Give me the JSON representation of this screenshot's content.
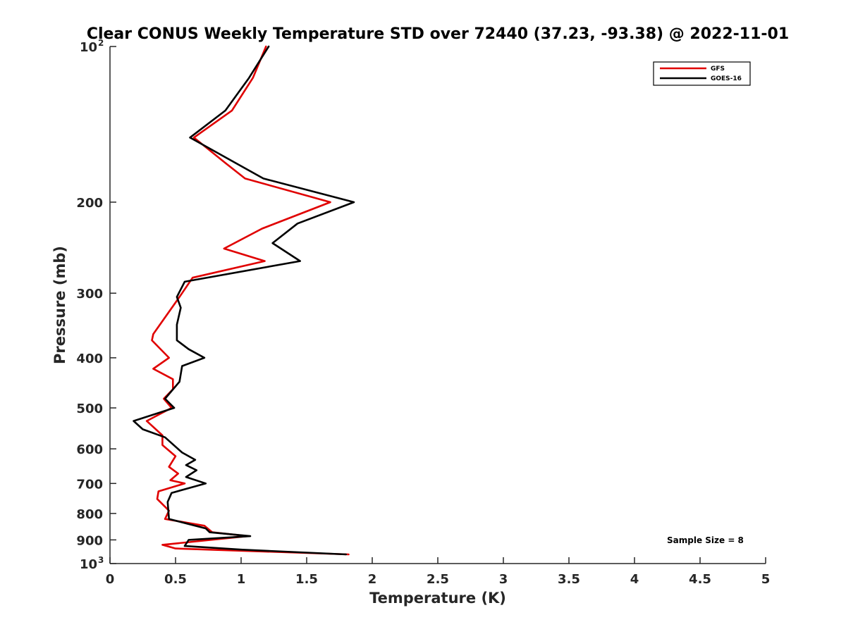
{
  "chart_data": {
    "type": "line",
    "title": "Clear CONUS Weekly Temperature STD over 72440 (37.23, -93.38) @ 2022-11-01",
    "xlabel": "Temperature (K)",
    "ylabel": "Pressure (mb)",
    "xlim": [
      0,
      5
    ],
    "ylim": [
      100,
      1000
    ],
    "y_scale": "log",
    "y_reversed": true,
    "grid": false,
    "legend_position": "top-right",
    "x_ticks": [
      {
        "value": 0,
        "label": "0"
      },
      {
        "value": 0.5,
        "label": "0.5"
      },
      {
        "value": 1,
        "label": "1"
      },
      {
        "value": 1.5,
        "label": "1.5"
      },
      {
        "value": 2,
        "label": "2"
      },
      {
        "value": 2.5,
        "label": "2.5"
      },
      {
        "value": 3,
        "label": "3"
      },
      {
        "value": 3.5,
        "label": "3.5"
      },
      {
        "value": 4,
        "label": "4"
      },
      {
        "value": 4.5,
        "label": "4.5"
      },
      {
        "value": 5,
        "label": "5"
      }
    ],
    "y_ticks": [
      {
        "value": 100,
        "label": "10",
        "sup": "2"
      },
      {
        "value": 200,
        "label": "200"
      },
      {
        "value": 300,
        "label": "300"
      },
      {
        "value": 400,
        "label": "400"
      },
      {
        "value": 500,
        "label": "500"
      },
      {
        "value": 600,
        "label": "600"
      },
      {
        "value": 700,
        "label": "700"
      },
      {
        "value": 800,
        "label": "800"
      },
      {
        "value": 900,
        "label": "900"
      },
      {
        "value": 1000,
        "label": "10",
        "sup": "3"
      }
    ],
    "annotation": "Sample Size = 8",
    "series": [
      {
        "name": "GFS",
        "color": "#e00000",
        "points": [
          [
            1.19,
            100
          ],
          [
            1.09,
            115
          ],
          [
            0.93,
            133
          ],
          [
            0.64,
            150
          ],
          [
            0.88,
            168
          ],
          [
            1.03,
            180
          ],
          [
            1.68,
            200
          ],
          [
            1.16,
            225
          ],
          [
            0.87,
            246
          ],
          [
            1.18,
            260
          ],
          [
            0.63,
            280
          ],
          [
            0.53,
            305
          ],
          [
            0.33,
            360
          ],
          [
            0.32,
            370
          ],
          [
            0.45,
            400
          ],
          [
            0.33,
            420
          ],
          [
            0.48,
            440
          ],
          [
            0.48,
            460
          ],
          [
            0.41,
            480
          ],
          [
            0.47,
            500
          ],
          [
            0.28,
            530
          ],
          [
            0.4,
            565
          ],
          [
            0.4,
            590
          ],
          [
            0.5,
            620
          ],
          [
            0.45,
            650
          ],
          [
            0.52,
            670
          ],
          [
            0.46,
            690
          ],
          [
            0.57,
            700
          ],
          [
            0.37,
            725
          ],
          [
            0.36,
            750
          ],
          [
            0.45,
            790
          ],
          [
            0.42,
            820
          ],
          [
            0.72,
            845
          ],
          [
            0.78,
            870
          ],
          [
            1.05,
            885
          ],
          [
            0.4,
            920
          ],
          [
            0.5,
            935
          ],
          [
            1.82,
            960
          ]
        ]
      },
      {
        "name": "GOES-16",
        "color": "#000000",
        "points": [
          [
            1.21,
            100
          ],
          [
            1.06,
            115
          ],
          [
            0.88,
            133
          ],
          [
            0.61,
            150
          ],
          [
            1.17,
            180
          ],
          [
            1.86,
            200
          ],
          [
            1.43,
            220
          ],
          [
            1.24,
            240
          ],
          [
            1.45,
            260
          ],
          [
            0.57,
            285
          ],
          [
            0.51,
            305
          ],
          [
            0.54,
            320
          ],
          [
            0.51,
            345
          ],
          [
            0.51,
            370
          ],
          [
            0.6,
            385
          ],
          [
            0.72,
            400
          ],
          [
            0.55,
            415
          ],
          [
            0.53,
            445
          ],
          [
            0.42,
            480
          ],
          [
            0.49,
            500
          ],
          [
            0.18,
            530
          ],
          [
            0.25,
            550
          ],
          [
            0.42,
            570
          ],
          [
            0.55,
            610
          ],
          [
            0.65,
            630
          ],
          [
            0.58,
            645
          ],
          [
            0.66,
            660
          ],
          [
            0.58,
            680
          ],
          [
            0.73,
            700
          ],
          [
            0.47,
            730
          ],
          [
            0.44,
            760
          ],
          [
            0.45,
            820
          ],
          [
            0.73,
            855
          ],
          [
            0.76,
            870
          ],
          [
            1.07,
            885
          ],
          [
            0.6,
            900
          ],
          [
            0.57,
            925
          ],
          [
            1.01,
            940
          ],
          [
            1.8,
            960
          ]
        ]
      }
    ]
  }
}
